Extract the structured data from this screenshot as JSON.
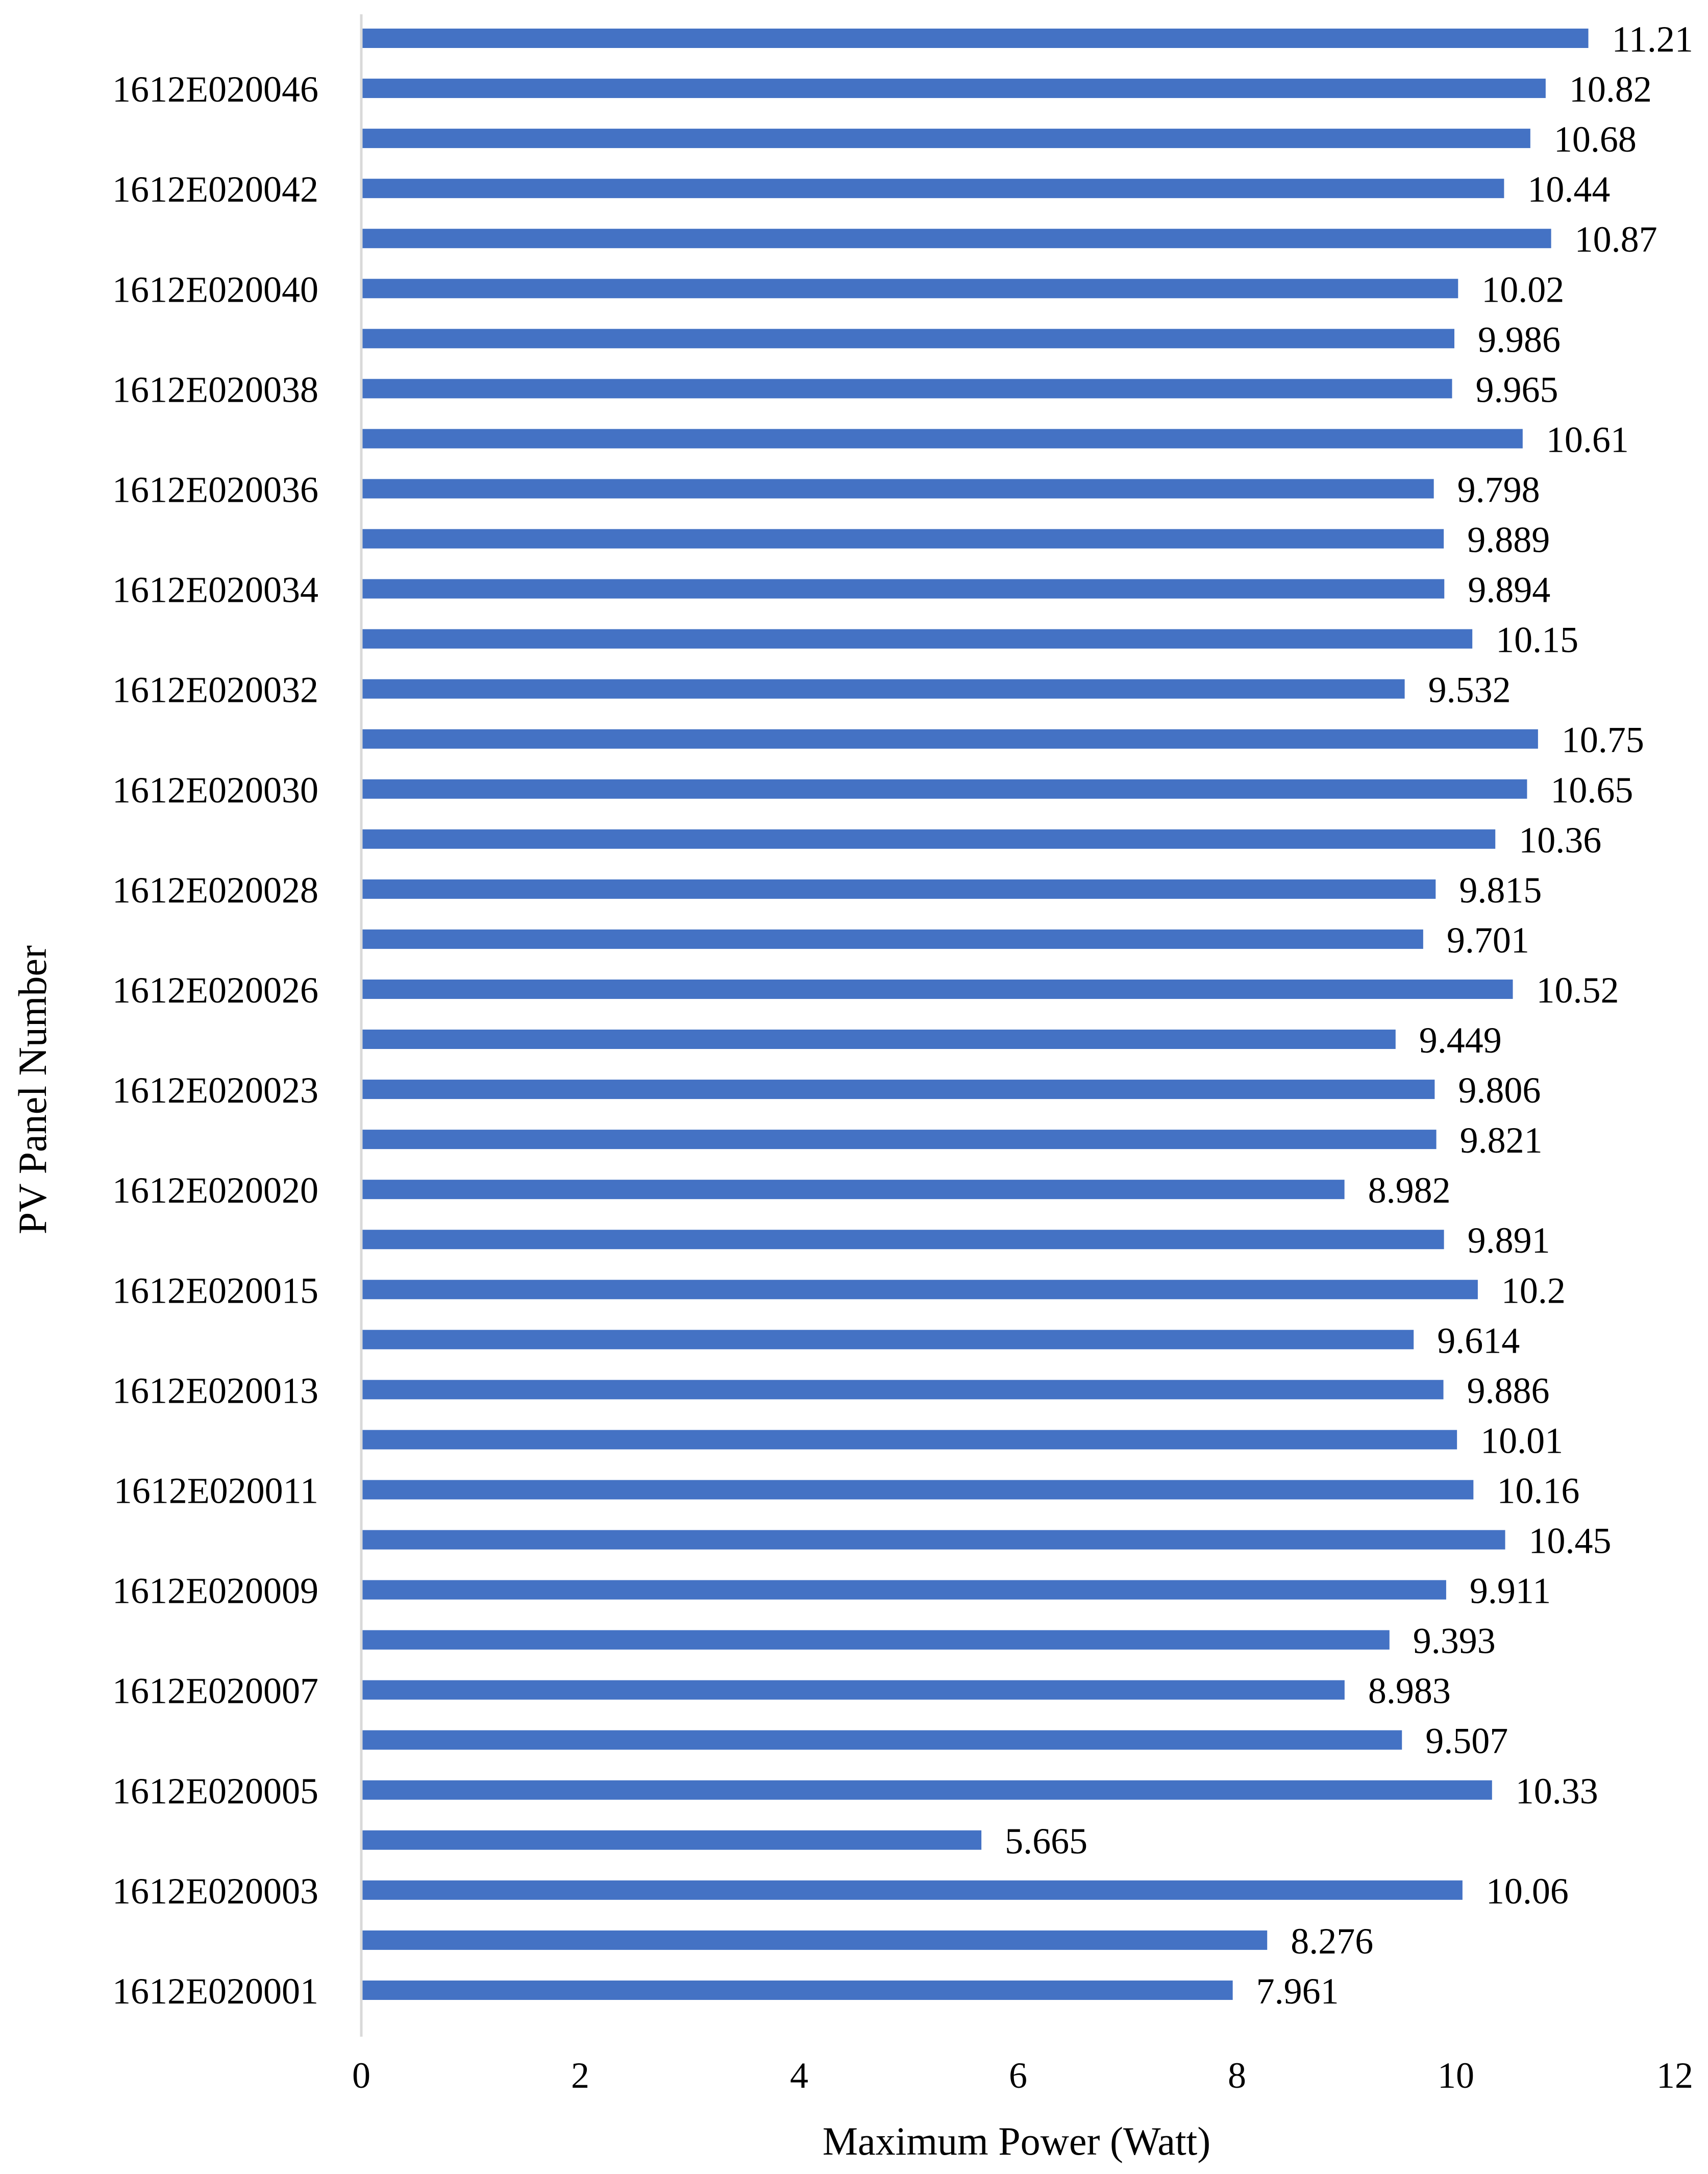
{
  "chart_data": {
    "type": "bar",
    "orientation": "horizontal",
    "xlabel": "Maximum Power (Watt)",
    "ylabel": "PV Panel Number",
    "xlim": [
      0,
      12
    ],
    "xticks": [
      0,
      2,
      4,
      6,
      8,
      10,
      12
    ],
    "grid": false,
    "legend": "none",
    "bar_color": "#4472C4",
    "categories": [
      "",
      "1612E020046",
      "",
      "1612E020042",
      "",
      "1612E020040",
      "",
      "1612E020038",
      "",
      "1612E020036",
      "",
      "1612E020034",
      "",
      "1612E020032",
      "",
      "1612E020030",
      "",
      "1612E020028",
      "",
      "1612E020026",
      "",
      "1612E020023",
      "",
      "1612E020020",
      "",
      "1612E020015",
      "",
      "1612E020013",
      "",
      "1612E020011",
      "",
      "1612E020009",
      "",
      "1612E020007",
      "",
      "1612E020005",
      "",
      "1612E020003",
      "",
      "1612E020001"
    ],
    "values": [
      11.21,
      10.82,
      10.68,
      10.44,
      10.87,
      10.02,
      9.986,
      9.965,
      10.61,
      9.798,
      9.889,
      9.894,
      10.15,
      9.532,
      10.75,
      10.65,
      10.36,
      9.815,
      9.701,
      10.52,
      9.449,
      9.806,
      9.821,
      8.982,
      9.891,
      10.2,
      9.614,
      9.886,
      10.01,
      10.16,
      10.45,
      9.911,
      9.393,
      8.983,
      9.507,
      10.33,
      5.665,
      10.06,
      8.276,
      7.961
    ],
    "value_labels": [
      "11.21",
      "10.82",
      "10.68",
      "10.44",
      "10.87",
      "10.02",
      "9.986",
      "9.965",
      "10.61",
      "9.798",
      "9.889",
      "9.894",
      "10.15",
      "9.532",
      "10.75",
      "10.65",
      "10.36",
      "9.815",
      "9.701",
      "10.52",
      "9.449",
      "9.806",
      "9.821",
      "8.982",
      "9.891",
      "10.2",
      "9.614",
      "9.886",
      "10.01",
      "10.16",
      "10.45",
      "9.911",
      "9.393",
      "8.983",
      "9.507",
      "10.33",
      "5.665",
      "10.06",
      "8.276",
      "7.961"
    ]
  }
}
